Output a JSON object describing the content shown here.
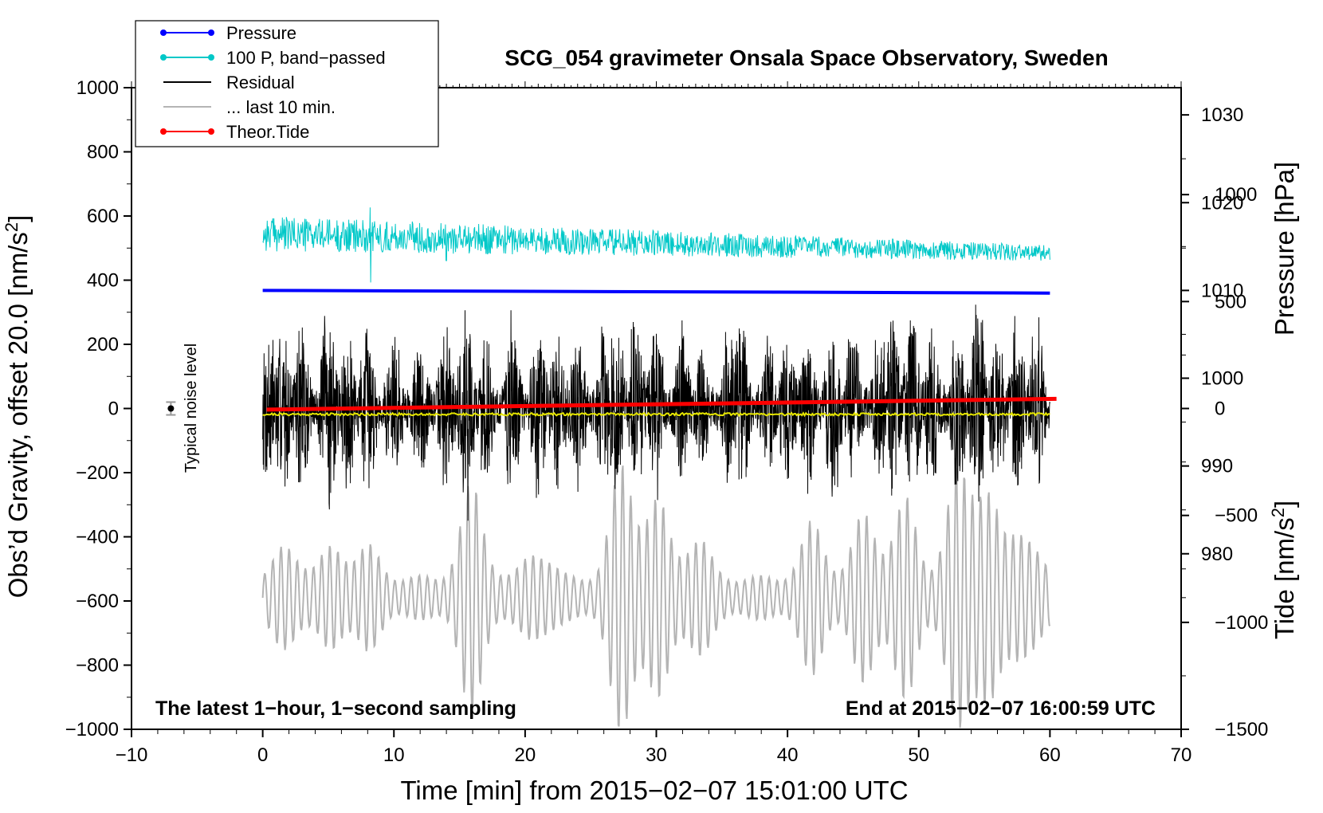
{
  "chart_data": {
    "type": "line",
    "title": "SCG_054 gravimeter Onsala Space Observatory, Sweden",
    "xlabel": "Time [min] from 2015−02−07 15:01:00 UTC",
    "ylabel_left_main": "Obs’d Gravity, offset 20.0 [nm/s",
    "ylabel_left_sup": "2",
    "ylabel_left_close": "]",
    "ylabel_right_pressure": "Pressure [hPa]",
    "ylabel_right_tide_main": "Tide [nm/s",
    "ylabel_right_tide_sup": "2",
    "ylabel_right_tide_close": "]",
    "xlim": [
      -10,
      70
    ],
    "ylim": [
      -1000,
      1000
    ],
    "pressure_lim": [
      960,
      1033.1
    ],
    "tide_lim": [
      -1500,
      1500
    ],
    "x_ticks": [
      "−10",
      "0",
      "10",
      "20",
      "30",
      "40",
      "50",
      "60",
      "70"
    ],
    "x_tick_values": [
      -10,
      0,
      10,
      20,
      30,
      40,
      50,
      60,
      70
    ],
    "y_ticks": [
      "1000",
      "800",
      "600",
      "400",
      "200",
      "0",
      "−200",
      "−400",
      "−600",
      "−800",
      "−1000"
    ],
    "y_tick_values": [
      1000,
      800,
      600,
      400,
      200,
      0,
      -200,
      -400,
      -600,
      -800,
      -1000
    ],
    "pressure_ticks": [
      "1030",
      "1020",
      "1010",
      "1000",
      "990",
      "980"
    ],
    "pressure_tick_values": [
      1030,
      1020,
      1010,
      1000,
      990,
      980
    ],
    "tide_ticks": [
      "1000",
      "500",
      "0",
      "−500",
      "−1000",
      "−1500"
    ],
    "tide_tick_values": [
      1000,
      500,
      0,
      -500,
      -1000,
      -1500
    ],
    "legend": [
      {
        "label": "Pressure",
        "color": "#0000ff",
        "marker": true
      },
      {
        "label": "100 P, band−passed",
        "color": "#00c8c8",
        "marker": true
      },
      {
        "label": "Residual",
        "color": "#000000",
        "marker": false
      },
      {
        "label": "... last 10 min.",
        "color": "#b4b4b4",
        "marker": false
      },
      {
        "label": "Theor.Tide",
        "color": "#ff0000",
        "marker": true
      }
    ],
    "notes": {
      "left": "The latest 1−hour, 1−second sampling",
      "right": "End at 2015−02−07 16:00:59 UTC",
      "noise": "Typical noise level"
    },
    "noise_marker": {
      "x": -7,
      "y": 0,
      "err": 20
    },
    "series": [
      {
        "name": "Pressure",
        "axis": "pressure",
        "color": "#0000ff",
        "x_range": [
          0,
          60
        ],
        "start": 1010.0,
        "end": 1009.7
      },
      {
        "name": "100 P, band−passed",
        "axis": "gravity",
        "color": "#00c8c8",
        "x_range": [
          0,
          60
        ],
        "center_start": 545,
        "center_end": 485,
        "amplitude_start": 55,
        "amplitude_end": 25
      },
      {
        "name": "Residual",
        "axis": "gravity",
        "color": "#000000",
        "x_range": [
          0,
          60
        ],
        "center": 0,
        "envelope_peaks": [
          [
            0.5,
            320
          ],
          [
            1.5,
            300
          ],
          [
            3,
            330
          ],
          [
            5,
            390
          ],
          [
            6.5,
            280
          ],
          [
            8,
            320
          ],
          [
            10,
            300
          ],
          [
            12,
            280
          ],
          [
            14,
            320
          ],
          [
            15.5,
            370
          ],
          [
            17,
            280
          ],
          [
            19,
            330
          ],
          [
            21,
            320
          ],
          [
            22.5,
            300
          ],
          [
            24,
            290
          ],
          [
            26,
            290
          ],
          [
            27,
            330
          ],
          [
            28.5,
            350
          ],
          [
            30,
            300
          ],
          [
            32,
            290
          ],
          [
            33.5,
            250
          ],
          [
            35.5,
            270
          ],
          [
            36.5,
            310
          ],
          [
            38.5,
            260
          ],
          [
            40,
            280
          ],
          [
            41.5,
            290
          ],
          [
            43.5,
            370
          ],
          [
            45,
            290
          ],
          [
            47,
            280
          ],
          [
            48,
            340
          ],
          [
            49.5,
            360
          ],
          [
            51,
            300
          ],
          [
            53,
            330
          ],
          [
            54.5,
            390
          ],
          [
            56,
            300
          ],
          [
            57.5,
            320
          ],
          [
            59,
            300
          ]
        ]
      },
      {
        "name": "Smoothed residual",
        "axis": "gravity",
        "color": "#e6e600",
        "x_range": [
          0,
          60
        ],
        "value": -18
      },
      {
        "name": "... last 10 min.",
        "axis": "gravity",
        "color": "#b4b4b4",
        "x_range": [
          0,
          60
        ],
        "center": -590,
        "packet_centers": [
          2,
          5.5,
          8,
          16,
          21,
          27.5,
          30,
          33,
          42,
          46,
          49,
          53,
          55,
          58
        ],
        "packet_amplitudes": [
          120,
          110,
          100,
          300,
          110,
          380,
          250,
          150,
          180,
          220,
          250,
          320,
          340,
          200
        ]
      },
      {
        "name": "Theor.Tide",
        "axis": "tide",
        "color": "#ff0000",
        "x_range": [
          0.3,
          60.5
        ],
        "start": -5,
        "end": 45
      }
    ]
  }
}
